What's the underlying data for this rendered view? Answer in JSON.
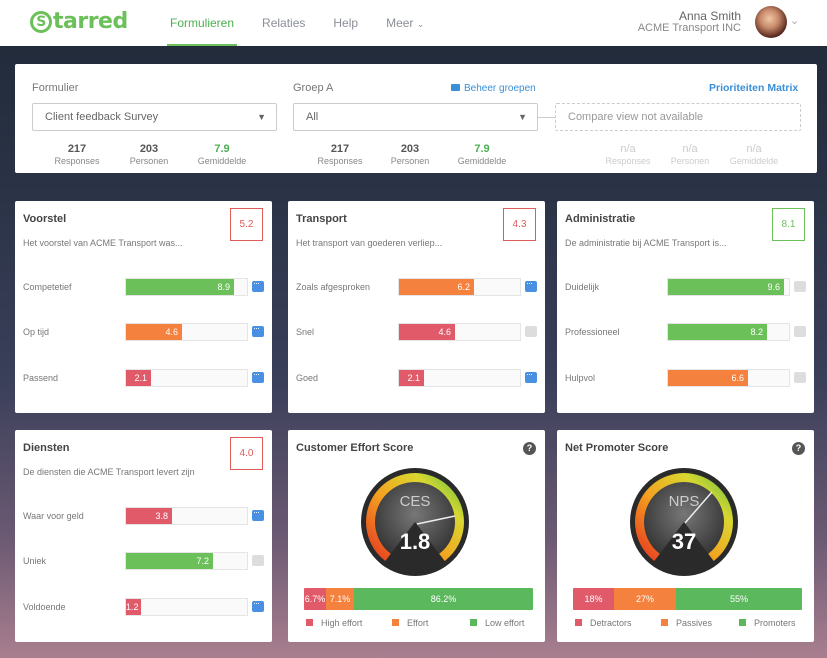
{
  "nav": {
    "logo": "starred",
    "logo_letter": "S",
    "logo_rest": "tarred",
    "items": [
      {
        "label": "Formulieren"
      },
      {
        "label": "Relaties"
      },
      {
        "label": "Help"
      },
      {
        "label": "Meer"
      }
    ],
    "user_name": "Anna  Smith",
    "company": "ACME Transport INC"
  },
  "filter": {
    "form_label": "Formulier",
    "form_value": "Client feedback Survey",
    "group_label": "Groep A",
    "group_manage": "Beheer groepen",
    "group_value": "All",
    "priority_link": "Prioriteiten Matrix",
    "compare_placeholder": "Compare view not available",
    "stats_a": [
      {
        "n": "217",
        "t": "Responses"
      },
      {
        "n": "203",
        "t": "Personen"
      },
      {
        "n": "7.9",
        "t": "Gemiddelde"
      }
    ],
    "stats_b": [
      {
        "n": "217",
        "t": "Responses"
      },
      {
        "n": "203",
        "t": "Personen"
      },
      {
        "n": "7.9",
        "t": "Gemiddelde"
      }
    ],
    "stats_c": [
      {
        "n": "n/a",
        "t": "Responses"
      },
      {
        "n": "n/a",
        "t": "Personen"
      },
      {
        "n": "n/a",
        "t": "Gemiddelde"
      }
    ]
  },
  "panels": [
    {
      "title": "Voorstel",
      "sub": "Het voorstel van ACME Transport was...",
      "score": "5.2",
      "score_color": "#e05a5a",
      "rows": [
        {
          "label": "Competetief",
          "value": 8.9,
          "display": "8.9",
          "color": "#6cc05a",
          "comment": true
        },
        {
          "label": "Op tijd",
          "value": 4.6,
          "display": "4.6",
          "color": "#f5813f",
          "comment": true
        },
        {
          "label": "Passend",
          "value": 2.1,
          "display": "2.1",
          "color": "#e05a6a",
          "comment": true
        }
      ]
    },
    {
      "title": "Transport",
      "sub": "Het transport van goederen verliep...",
      "score": "4.3",
      "score_color": "#e05a5a",
      "rows": [
        {
          "label": "Zoals afgesproken",
          "value": 6.2,
          "display": "6.2",
          "color": "#f5813f",
          "comment": true
        },
        {
          "label": "Snel",
          "value": 4.6,
          "display": "4.6",
          "color": "#e05a6a",
          "comment": false
        },
        {
          "label": "Goed",
          "value": 2.1,
          "display": "2.1",
          "color": "#e05a6a",
          "comment": true
        }
      ]
    },
    {
      "title": "Administratie",
      "sub": "De administratie bij ACME Transport is...",
      "score": "8.1",
      "score_color": "#6cc05a",
      "rows": [
        {
          "label": "Duidelijk",
          "value": 9.6,
          "display": "9.6",
          "color": "#6cc05a",
          "comment": false
        },
        {
          "label": "Professioneel",
          "value": 8.2,
          "display": "8.2",
          "color": "#6cc05a",
          "comment": false
        },
        {
          "label": "Hulpvol",
          "value": 6.6,
          "display": "6.6",
          "color": "#f5813f",
          "comment": false
        }
      ]
    },
    {
      "title": "Diensten",
      "sub": "De diensten die ACME Transport levert zijn",
      "score": "4.0",
      "score_color": "#e05a5a",
      "rows": [
        {
          "label": "Waar voor geld",
          "value": 3.8,
          "display": "3.8",
          "color": "#e05a6a",
          "comment": true
        },
        {
          "label": "Uniek",
          "value": 7.2,
          "display": "7.2",
          "color": "#6cc05a",
          "comment": false
        },
        {
          "label": "Voldoende",
          "value": 1.2,
          "display": "1.2",
          "color": "#e05a6a",
          "comment": true
        }
      ]
    }
  ],
  "ces": {
    "title": "Customer Effort Score",
    "gauge_label": "CES",
    "value": "1.8",
    "help": "?",
    "segments": [
      {
        "label": "High effort",
        "value": 6.7,
        "display": "6.7%",
        "color": "#e05a6a"
      },
      {
        "label": "Effort",
        "value": 7.1,
        "display": "7.1%",
        "color": "#f5813f"
      },
      {
        "label": "Low effort",
        "value": 86.2,
        "display": "86.2%",
        "color": "#5cb85c"
      }
    ]
  },
  "nps": {
    "title": "Net Promoter Score",
    "gauge_label": "NPS",
    "value": "37",
    "help": "?",
    "segments": [
      {
        "label": "Detractors",
        "value": 18,
        "display": "18%",
        "color": "#e05a6a"
      },
      {
        "label": "Passives",
        "value": 27,
        "display": "27%",
        "color": "#f5813f"
      },
      {
        "label": "Promoters",
        "value": 55,
        "display": "55%",
        "color": "#5cb85c"
      }
    ]
  }
}
